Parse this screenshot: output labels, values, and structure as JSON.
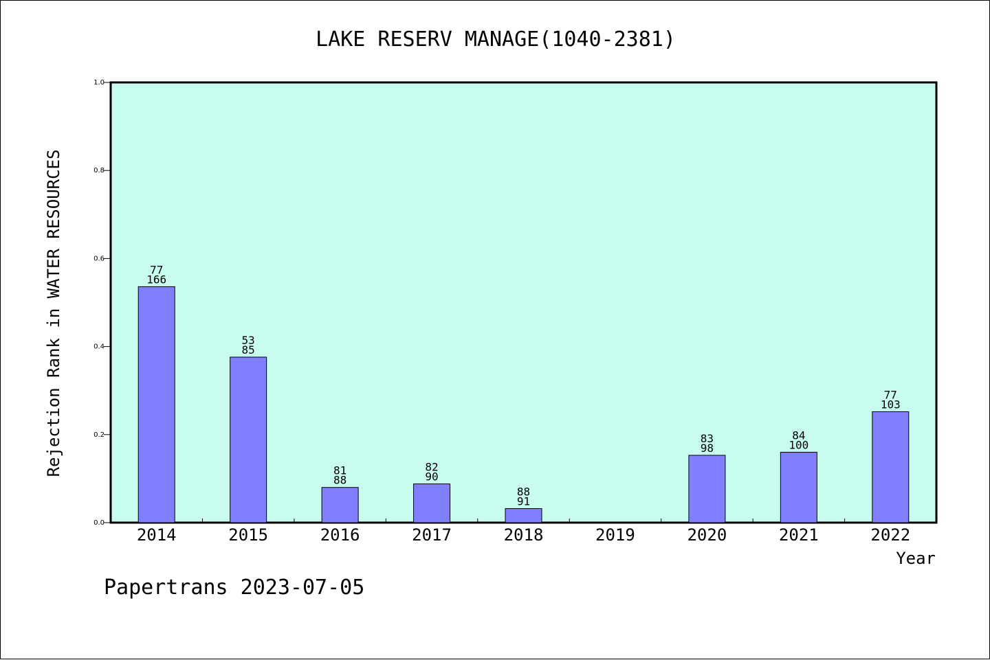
{
  "chart_data": {
    "type": "bar",
    "title": "LAKE RESERV MANAGE(1040-2381)",
    "xlabel": "Year",
    "ylabel": "Rejection Rank in WATER RESOURCES",
    "ylim": [
      0,
      1.0
    ],
    "yticks": [
      "0.0",
      "0.2",
      "0.4",
      "0.6",
      "0.8",
      "1.0"
    ],
    "categories": [
      "2014",
      "2015",
      "2016",
      "2017",
      "2018",
      "2019",
      "2020",
      "2021",
      "2022"
    ],
    "values": [
      0.536,
      0.376,
      0.08,
      0.088,
      0.032,
      null,
      0.153,
      0.16,
      0.252
    ],
    "labels_top": [
      "77",
      "53",
      "81",
      "82",
      "88",
      "",
      "83",
      "84",
      "77"
    ],
    "labels_bottom": [
      "166",
      "85",
      "88",
      "90",
      "91",
      "",
      "98",
      "100",
      "103"
    ],
    "grid": false,
    "legend": "none"
  },
  "footer": "Papertrans 2023-07-05",
  "colors": {
    "plot_background": "#c8fcee",
    "bar_fill": "#8080ff",
    "bar_stroke": "#000000",
    "axis": "#000000"
  }
}
